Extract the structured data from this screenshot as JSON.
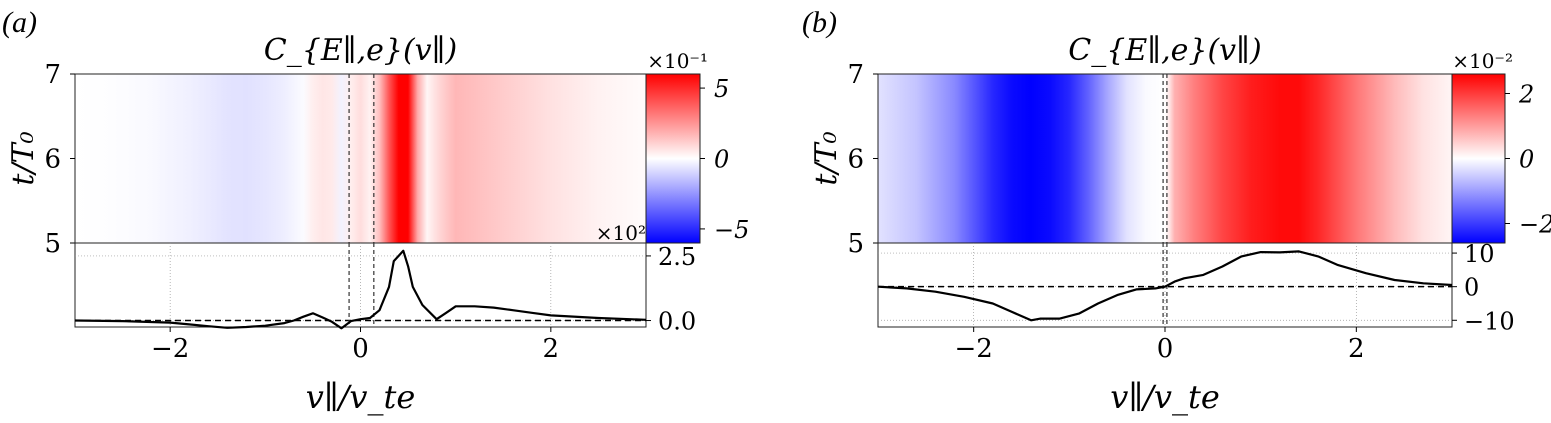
{
  "figure": {
    "panels": [
      {
        "label": "(a)",
        "title": "C_{E∥,e}(v∥)",
        "ylabel": "t/T₀",
        "xlabel": "v∥/v_te",
        "colorbar": {
          "scale_label": "×10⁻¹",
          "ticks": [
            "5",
            "0",
            "−5"
          ],
          "tick_values": [
            5,
            0,
            -5
          ]
        },
        "line_scale_label": "×10²"
      },
      {
        "label": "(b)",
        "title": "C_{E∥,e}(v∥)",
        "ylabel": "t/T₀",
        "xlabel": "v∥/v_te",
        "colorbar": {
          "scale_label": "×10⁻²",
          "ticks": [
            "2",
            "0",
            "−2"
          ],
          "tick_values": [
            2,
            0,
            -2
          ]
        },
        "line_scale_label": ""
      }
    ]
  },
  "chart_data": [
    {
      "type": "heatmap",
      "panel": "a",
      "title": "C_{E∥,e}(v∥)",
      "xlabel": "v∥/v_te",
      "ylabel": "t/T₀",
      "xlim": [
        -3,
        3
      ],
      "ylim": [
        5,
        7
      ],
      "yticks": [
        5,
        6,
        7
      ],
      "clim": [
        -6,
        6
      ],
      "colormap": "bwr",
      "scale": "×10⁻¹",
      "profile": {
        "x": [
          -3.0,
          -2.6,
          -2.2,
          -2.0,
          -1.8,
          -1.6,
          -1.4,
          -1.2,
          -1.0,
          -0.8,
          -0.6,
          -0.5,
          -0.4,
          -0.3,
          -0.2,
          -0.1,
          0.0,
          0.1,
          0.2,
          0.3,
          0.4,
          0.45,
          0.5,
          0.55,
          0.6,
          0.7,
          0.8,
          0.9,
          1.0,
          1.2,
          1.5,
          2.0,
          2.5,
          3.0
        ],
        "values": [
          0.0,
          -0.05,
          -0.15,
          -0.25,
          -0.35,
          -0.5,
          -0.65,
          -0.7,
          -0.6,
          -0.4,
          -0.1,
          0.4,
          0.6,
          0.5,
          -0.3,
          0.4,
          0.8,
          0.3,
          1.5,
          4.0,
          6.0,
          6.5,
          6.0,
          4.0,
          2.0,
          0.2,
          0.8,
          1.3,
          1.7,
          1.5,
          1.2,
          0.7,
          0.3,
          0.1
        ]
      },
      "vlines": [
        -0.12,
        0.14
      ]
    },
    {
      "type": "line",
      "panel": "a",
      "xlabel": "v∥/v_te",
      "xlim": [
        -3,
        3
      ],
      "xticks": [
        -2,
        0,
        2
      ],
      "ylim": [
        -0.25,
        3.0
      ],
      "yticks": [
        0.0,
        2.5
      ],
      "ytick_labels": [
        "0.0",
        "2.5"
      ],
      "scale": "×10²",
      "x": [
        -3.0,
        -2.5,
        -2.0,
        -1.8,
        -1.6,
        -1.4,
        -1.2,
        -1.0,
        -0.8,
        -0.7,
        -0.6,
        -0.5,
        -0.4,
        -0.3,
        -0.2,
        -0.1,
        0.0,
        0.1,
        0.2,
        0.3,
        0.35,
        0.45,
        0.5,
        0.55,
        0.65,
        0.8,
        0.9,
        1.0,
        1.2,
        1.4,
        1.6,
        1.8,
        2.0,
        2.5,
        3.0
      ],
      "y": [
        0.0,
        -0.02,
        -0.08,
        -0.15,
        -0.22,
        -0.28,
        -0.25,
        -0.2,
        -0.1,
        0.0,
        0.15,
        0.28,
        0.12,
        -0.05,
        -0.3,
        -0.02,
        0.05,
        0.1,
        0.4,
        1.3,
        2.3,
        2.7,
        2.1,
        1.3,
        0.6,
        0.05,
        0.3,
        0.55,
        0.55,
        0.5,
        0.4,
        0.3,
        0.2,
        0.1,
        0.03
      ],
      "hline": 0.0,
      "vlines": [
        -0.12,
        0.14
      ],
      "grid": true
    },
    {
      "type": "heatmap",
      "panel": "b",
      "title": "C_{E∥,e}(v∥)",
      "xlabel": "v∥/v_te",
      "ylabel": "t/T₀",
      "xlim": [
        -3,
        3
      ],
      "ylim": [
        5,
        7
      ],
      "yticks": [
        5,
        6,
        7
      ],
      "clim": [
        -2.6,
        2.6
      ],
      "colormap": "bwr",
      "scale": "×10⁻²",
      "profile": {
        "x": [
          -3.0,
          -2.6,
          -2.2,
          -1.8,
          -1.6,
          -1.4,
          -1.2,
          -1.0,
          -0.8,
          -0.6,
          -0.4,
          -0.2,
          0.0,
          0.05,
          0.1,
          0.3,
          0.6,
          0.9,
          1.2,
          1.4,
          1.6,
          2.0,
          2.4,
          2.7,
          3.0
        ],
        "values": [
          -0.3,
          -0.6,
          -1.2,
          -2.2,
          -2.5,
          -2.6,
          -2.5,
          -2.2,
          -1.6,
          -0.9,
          -0.3,
          -0.05,
          0.0,
          0.3,
          0.8,
          1.3,
          1.9,
          2.3,
          2.5,
          2.5,
          2.2,
          1.4,
          0.7,
          0.3,
          0.1
        ]
      },
      "vlines": [
        -0.02,
        0.02
      ]
    },
    {
      "type": "line",
      "panel": "b",
      "xlabel": "v∥/v_te",
      "xlim": [
        -3,
        3
      ],
      "xticks": [
        -2,
        0,
        2
      ],
      "ylim": [
        -12,
        13
      ],
      "yticks": [
        -10,
        0,
        10
      ],
      "ytick_labels": [
        "−10",
        "0",
        "10"
      ],
      "x": [
        -3.0,
        -2.7,
        -2.4,
        -2.1,
        -1.8,
        -1.6,
        -1.4,
        -1.3,
        -1.1,
        -0.9,
        -0.7,
        -0.5,
        -0.3,
        -0.1,
        0.0,
        0.1,
        0.2,
        0.4,
        0.6,
        0.8,
        1.0,
        1.2,
        1.4,
        1.6,
        1.8,
        2.1,
        2.4,
        2.7,
        3.0
      ],
      "y": [
        0.0,
        -0.5,
        -1.5,
        -3.0,
        -5.0,
        -7.5,
        -10.0,
        -9.5,
        -9.5,
        -8.0,
        -5.0,
        -2.5,
        -0.8,
        -0.5,
        0.0,
        1.5,
        2.5,
        3.5,
        6.0,
        9.0,
        10.3,
        10.2,
        10.5,
        9.0,
        6.5,
        4.0,
        2.0,
        1.0,
        0.5
      ],
      "hline": 0.0,
      "vlines": [
        -0.02,
        0.02
      ],
      "grid": true
    }
  ]
}
